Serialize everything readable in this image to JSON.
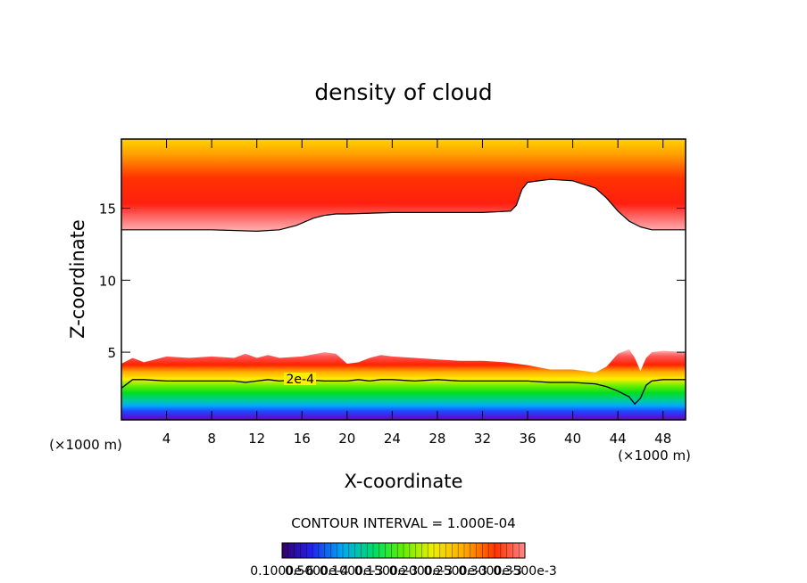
{
  "chart_data": {
    "type": "heatmap",
    "title": "density of cloud",
    "xlabel": "X-coordinate",
    "ylabel": "Z-coordinate",
    "x_unit": "(×1000 m)",
    "z_unit": "(×1000 m)",
    "xlim": [
      0,
      50
    ],
    "ylim": [
      0.3,
      19.8
    ],
    "x_ticks": [
      4,
      8,
      12,
      16,
      20,
      24,
      28,
      32,
      36,
      40,
      44,
      48
    ],
    "y_ticks": [
      5,
      10,
      15
    ],
    "contour_label": "2e-4",
    "contour_interval_text": "CONTOUR INTERVAL = 1.000E-04",
    "colorbar_labels": [
      "0.1000e-6",
      "0.5000e-4",
      "0.1000e-3",
      "0.1500e-3",
      "0.2000e-3",
      "0.2500e-3",
      "0.3000e-3",
      "0.3500e-3"
    ],
    "upper_layer": {
      "edge_x": [
        0,
        4,
        8,
        12,
        14,
        15.5,
        17,
        18,
        19,
        20,
        24,
        28,
        32,
        34.5,
        35,
        35.5,
        36,
        38,
        40,
        42,
        43,
        44,
        45,
        46,
        47,
        50
      ],
      "edge_z": [
        13.5,
        13.5,
        13.5,
        13.4,
        13.5,
        13.8,
        14.3,
        14.5,
        14.6,
        14.6,
        14.7,
        14.7,
        14.7,
        14.8,
        15.2,
        16.3,
        16.8,
        17.0,
        16.9,
        16.4,
        15.7,
        14.8,
        14.1,
        13.7,
        13.5,
        13.5
      ]
    },
    "lower_layer": {
      "top_x": [
        0,
        1,
        2,
        4,
        6,
        8,
        10,
        11,
        12,
        13,
        14,
        16,
        18,
        19,
        20,
        21,
        22,
        23,
        24,
        26,
        28,
        30,
        32,
        34,
        36,
        38,
        40,
        42,
        43,
        44,
        45,
        45.5,
        46,
        46.5,
        47,
        48,
        50
      ],
      "top_z": [
        4.2,
        4.6,
        4.3,
        4.7,
        4.6,
        4.7,
        4.6,
        4.9,
        4.6,
        4.8,
        4.6,
        4.7,
        5.0,
        4.9,
        4.2,
        4.3,
        4.6,
        4.8,
        4.7,
        4.6,
        4.5,
        4.4,
        4.4,
        4.3,
        4.1,
        3.8,
        3.8,
        3.6,
        4.0,
        4.9,
        5.2,
        4.6,
        3.7,
        4.6,
        5.0,
        5.1,
        5.0
      ],
      "contour_2e4_z": [
        2.5,
        3.1,
        3.1,
        3.0,
        3.0,
        3.0,
        3.0,
        2.9,
        3.0,
        3.1,
        3.0,
        3.1,
        3.0,
        3.0,
        3.0,
        3.1,
        3.0,
        3.1,
        3.1,
        3.0,
        3.1,
        3.0,
        3.0,
        3.0,
        3.0,
        2.9,
        2.9,
        2.8,
        2.6,
        2.3,
        1.9,
        1.4,
        1.8,
        2.7,
        3.0,
        3.1,
        3.1
      ]
    }
  }
}
